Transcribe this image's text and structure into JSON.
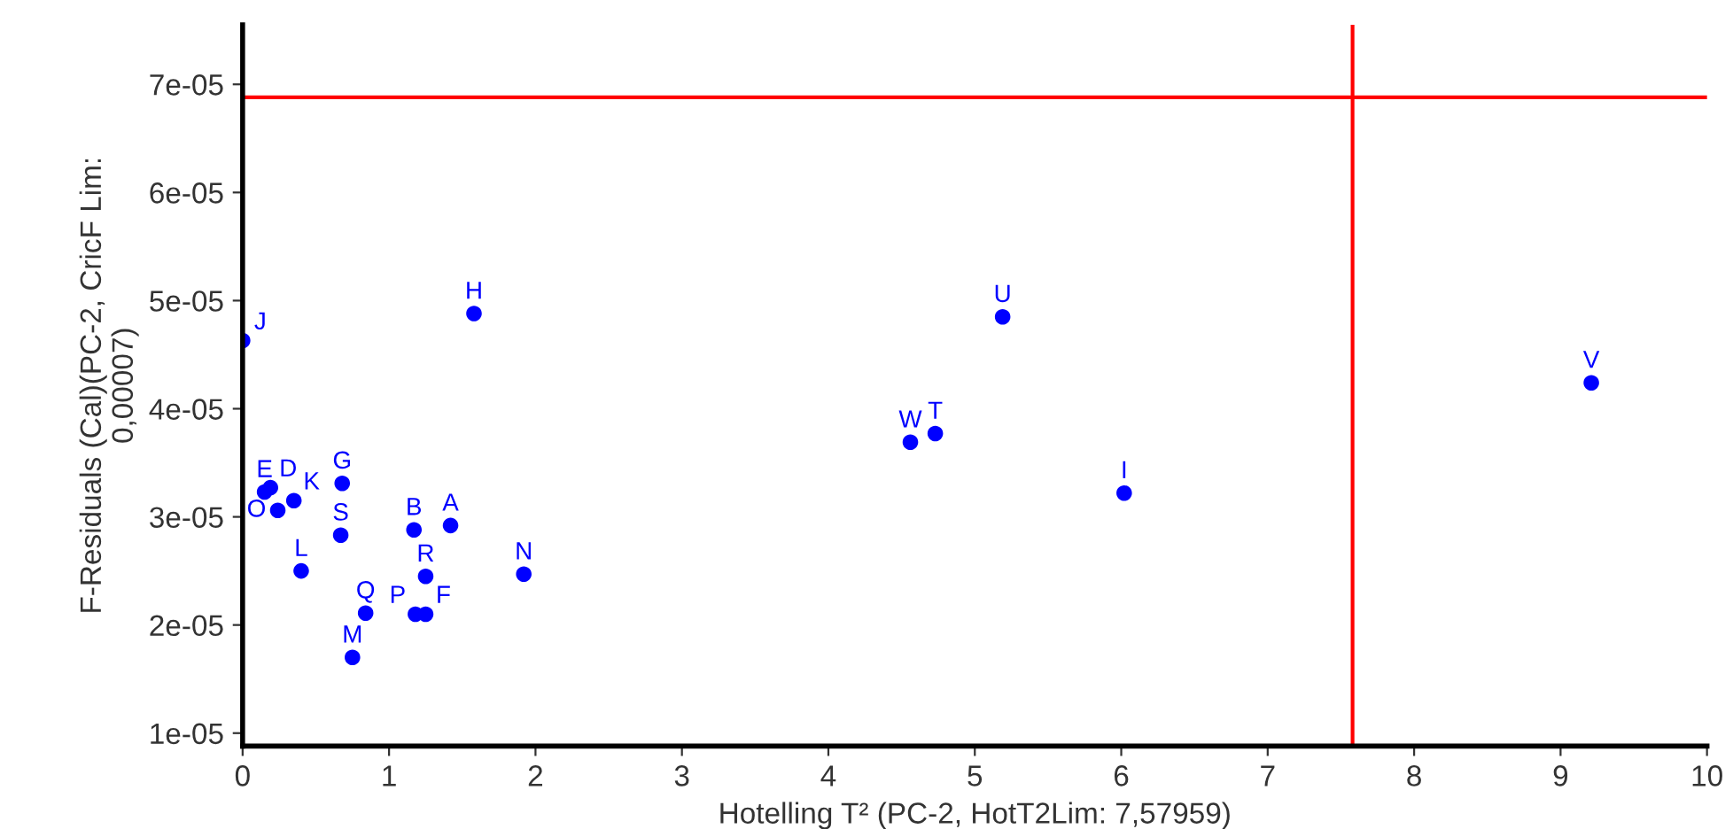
{
  "chart_data": {
    "type": "scatter",
    "xlabel": "Hotelling T² (PC-2, HotT2Lim: 7,57959)",
    "ylabel": "F-Residuals (Cal)(PC-2, CricF Lim:\n0,00007)",
    "x": [
      0,
      1.58,
      5.19,
      4.56,
      4.73,
      6.02,
      9.21,
      0.15,
      0.19,
      0.24,
      0.35,
      0.4,
      0.68,
      0.67,
      1.17,
      1.42,
      1.25,
      1.92,
      0.84,
      0.75,
      1.18,
      1.25
    ],
    "series": [
      {
        "color": "#0000ff",
        "values": [
          4.63e-05,
          4.88e-05,
          4.85e-05,
          3.69e-05,
          3.77e-05,
          3.22e-05,
          4.24e-05,
          3.23e-05,
          3.27e-05,
          3.06e-05,
          3.15e-05,
          2.5e-05,
          3.31e-05,
          2.83e-05,
          2.88e-05,
          2.92e-05,
          2.45e-05,
          2.47e-05,
          2.11e-05,
          1.7e-05,
          2.1e-05,
          2.1e-05
        ]
      }
    ],
    "marker": "circle",
    "annotations": [
      {
        "text": "J",
        "x": 0,
        "y": 4.63e-05
      },
      {
        "text": "H",
        "x": 1.58,
        "y": 4.88e-05
      },
      {
        "text": "U",
        "x": 5.19,
        "y": 4.85e-05
      },
      {
        "text": "W",
        "x": 4.56,
        "y": 3.69e-05
      },
      {
        "text": "T",
        "x": 4.73,
        "y": 3.77e-05
      },
      {
        "text": "I",
        "x": 6.02,
        "y": 3.22e-05
      },
      {
        "text": "V",
        "x": 9.21,
        "y": 4.24e-05
      },
      {
        "text": "E",
        "x": 0.15,
        "y": 3.23e-05
      },
      {
        "text": "D",
        "x": 0.19,
        "y": 3.27e-05
      },
      {
        "text": "O",
        "x": 0.24,
        "y": 3.06e-05
      },
      {
        "text": "K",
        "x": 0.35,
        "y": 3.15e-05
      },
      {
        "text": "L",
        "x": 0.4,
        "y": 2.5e-05
      },
      {
        "text": "G",
        "x": 0.68,
        "y": 3.31e-05
      },
      {
        "text": "S",
        "x": 0.67,
        "y": 2.83e-05
      },
      {
        "text": "B",
        "x": 1.17,
        "y": 2.88e-05
      },
      {
        "text": "A",
        "x": 1.42,
        "y": 2.92e-05
      },
      {
        "text": "R",
        "x": 1.25,
        "y": 2.45e-05
      },
      {
        "text": "N",
        "x": 1.92,
        "y": 2.47e-05
      },
      {
        "text": "Q",
        "x": 0.84,
        "y": 2.11e-05
      },
      {
        "text": "M",
        "x": 0.75,
        "y": 1.7e-05
      },
      {
        "text": "P",
        "x": 1.18,
        "y": 2.1e-05
      },
      {
        "text": "F",
        "x": 1.25,
        "y": 2.1e-05
      }
    ],
    "ref_lines": [
      {
        "axis": "y",
        "value": 6.88e-05,
        "color": "#ff0000"
      },
      {
        "axis": "x",
        "value": 7.57959,
        "color": "#ff0000"
      }
    ],
    "xlim": [
      0,
      10
    ],
    "xticks": [
      0,
      1,
      2,
      3,
      4,
      5,
      6,
      7,
      8,
      9,
      10
    ],
    "ylim": [
      8.8e-06,
      7.55e-05
    ],
    "yticks": [
      {
        "value": 1e-05,
        "label": "1e-05"
      },
      {
        "value": 2e-05,
        "label": "2e-05"
      },
      {
        "value": 3e-05,
        "label": "3e-05"
      },
      {
        "value": 4e-05,
        "label": "4e-05"
      },
      {
        "value": 5e-05,
        "label": "5e-05"
      },
      {
        "value": 6e-05,
        "label": "6e-05"
      },
      {
        "value": 7e-05,
        "label": "7e-05"
      }
    ],
    "grid": false,
    "legend": false
  }
}
